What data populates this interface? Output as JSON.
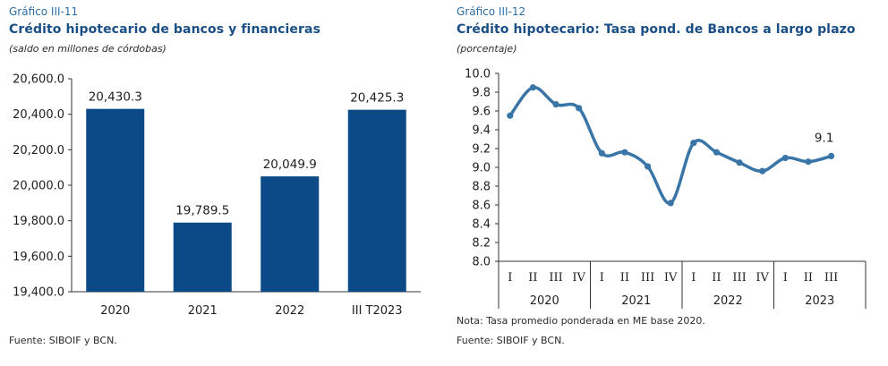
{
  "chart_data": [
    {
      "type": "bar",
      "label": "Gráfico III-11",
      "title": "Crédito hipotecario de bancos y financieras",
      "subtitle": "(saldo en millones de córdobas)",
      "categories": [
        "2020",
        "2021",
        "2022",
        "III T2023"
      ],
      "values": [
        20430.3,
        19789.5,
        20049.9,
        20425.3
      ],
      "value_labels": [
        "20,430.3",
        "19,789.5",
        "20,049.9",
        "20,425.3"
      ],
      "yticks": [
        "19,400.0",
        "19,600.0",
        "19,800.0",
        "20,000.0",
        "20,200.0",
        "20,400.0",
        "20,600.0"
      ],
      "ylim": [
        19400,
        20600
      ],
      "bar_color": "#0b4a86",
      "source": "Fuente: SIBOIF y BCN."
    },
    {
      "type": "line",
      "label": "Gráfico III-12",
      "title": "Crédito hipotecario: Tasa pond. de Bancos a largo plazo",
      "subtitle": "(porcentaje)",
      "quarter_labels": [
        "I",
        "II",
        "III",
        "IV",
        "I",
        "II",
        "III",
        "IV",
        "I",
        "II",
        "III",
        "IV",
        "I",
        "II",
        "III"
      ],
      "years": [
        "2020",
        "2021",
        "2022",
        "2023"
      ],
      "values": [
        9.55,
        9.85,
        9.67,
        9.63,
        9.15,
        9.16,
        9.01,
        8.62,
        9.26,
        9.16,
        9.05,
        8.96,
        9.1,
        9.06,
        9.12
      ],
      "last_label": "9.1",
      "yticks": [
        "8.0",
        "8.2",
        "8.4",
        "8.6",
        "8.8",
        "9.0",
        "9.2",
        "9.4",
        "9.6",
        "9.8",
        "10.0"
      ],
      "ylim": [
        8.0,
        10.0
      ],
      "line_color": "#3a75a8",
      "note": "Nota: Tasa promedio ponderada en ME base 2020.",
      "source": "Fuente: SIBOIF y BCN."
    }
  ]
}
